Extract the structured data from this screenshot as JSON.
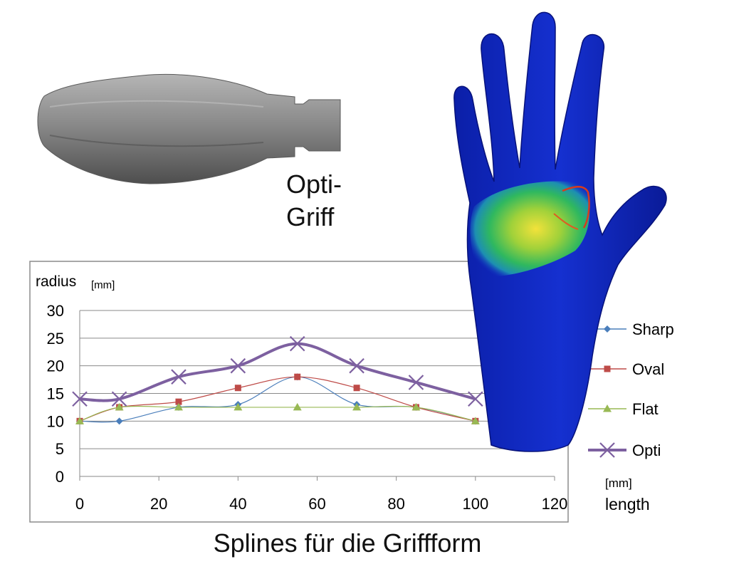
{
  "grip_label_line1": "Opti-",
  "grip_label_line2": "Griff",
  "caption": "Splines für die Griffform",
  "chart_data": {
    "type": "line",
    "ylabel": "radius",
    "ylabel_unit": "[mm]",
    "xlabel": "length",
    "xlabel_unit": "[mm]",
    "xlim": [
      0,
      120
    ],
    "ylim": [
      0,
      30
    ],
    "x_ticks": [
      0,
      20,
      40,
      60,
      80,
      100,
      120
    ],
    "y_ticks": [
      0,
      5,
      10,
      15,
      20,
      25,
      30
    ],
    "grid": true,
    "legend": "right",
    "series": [
      {
        "name": "Sharp",
        "color": "#4a7ebb",
        "marker": "diamond",
        "x": [
          0,
          10,
          25,
          40,
          55,
          70,
          85,
          100
        ],
        "y": [
          10,
          10,
          12.5,
          13,
          18,
          13,
          12.5,
          10
        ]
      },
      {
        "name": "Oval",
        "color": "#be4b48",
        "marker": "square",
        "x": [
          0,
          10,
          25,
          40,
          55,
          70,
          85,
          100
        ],
        "y": [
          10,
          12.5,
          13.5,
          16,
          18,
          16,
          12.5,
          10
        ]
      },
      {
        "name": "Flat",
        "color": "#98b954",
        "marker": "triangle",
        "x": [
          0,
          10,
          25,
          40,
          55,
          70,
          85,
          100
        ],
        "y": [
          10,
          12.5,
          12.5,
          12.5,
          12.5,
          12.5,
          12.5,
          10
        ]
      },
      {
        "name": "Opti",
        "color": "#7d60a0",
        "marker": "x",
        "x": [
          0,
          10,
          25,
          40,
          55,
          70,
          85,
          100
        ],
        "y": [
          14,
          14,
          18,
          20,
          24,
          20,
          17,
          14
        ]
      }
    ]
  }
}
